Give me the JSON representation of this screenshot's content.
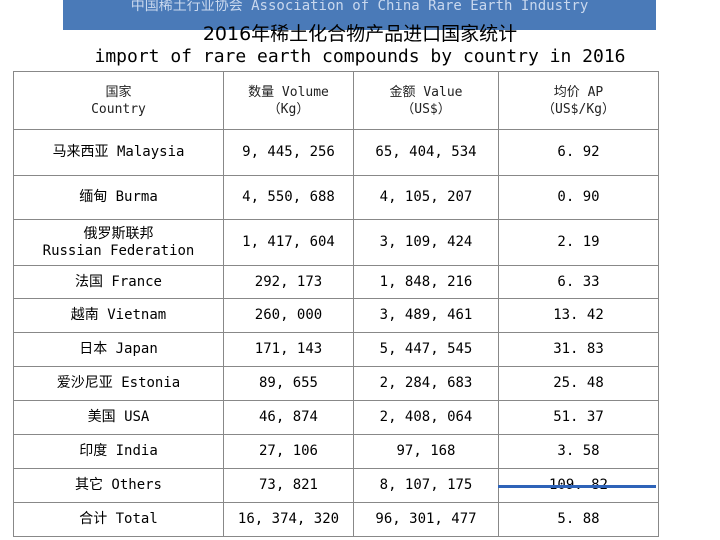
{
  "banner": {
    "text": "中国稀土行业协会 Association of China Rare Earth Industry",
    "color": "#4a7ab8"
  },
  "title": {
    "zh": "2016年稀土化合物产品进口国家统计",
    "en": "import of rare earth compounds by country in 2016"
  },
  "table": {
    "headers": [
      {
        "zh": "国家",
        "en": "Country"
      },
      {
        "zh": "数量 Volume",
        "en": "（Kg）"
      },
      {
        "zh": "金额 Value",
        "en": "（US$）"
      },
      {
        "zh": "均价 AP",
        "en": "（US$/Kg）"
      }
    ],
    "rows": [
      {
        "country": "马来西亚 Malaysia",
        "volume": "9, 445, 256",
        "value": "65, 404, 534",
        "ap": "6. 92"
      },
      {
        "country": "缅甸 Burma",
        "volume": "4, 550, 688",
        "value": "4, 105, 207",
        "ap": "0. 90"
      },
      {
        "country": "俄罗斯联邦",
        "country2": "Russian Federation",
        "volume": "1, 417, 604",
        "value": "3, 109, 424",
        "ap": "2. 19"
      },
      {
        "country": "法国 France",
        "volume": "292, 173",
        "value": "1, 848, 216",
        "ap": "6. 33"
      },
      {
        "country": "越南 Vietnam",
        "volume": "260, 000",
        "value": "3, 489, 461",
        "ap": "13. 42"
      },
      {
        "country": "日本 Japan",
        "volume": "171, 143",
        "value": "5, 447, 545",
        "ap": "31. 83"
      },
      {
        "country": "爱沙尼亚 Estonia",
        "volume": "89, 655",
        "value": "2, 284, 683",
        "ap": "25. 48"
      },
      {
        "country": "美国 USA",
        "volume": "46, 874",
        "value": "2, 408, 064",
        "ap": "51. 37"
      },
      {
        "country": "印度 India",
        "volume": "27, 106",
        "value": "97, 168",
        "ap": "3. 58"
      },
      {
        "country": "其它 Others",
        "volume": "73, 821",
        "value": "8, 107, 175",
        "ap": "109. 82"
      },
      {
        "country": "合计 Total",
        "volume": "16, 374, 320",
        "value": "96, 301, 477",
        "ap": "5. 88"
      }
    ]
  },
  "accent_line_color": "#2e63b8"
}
